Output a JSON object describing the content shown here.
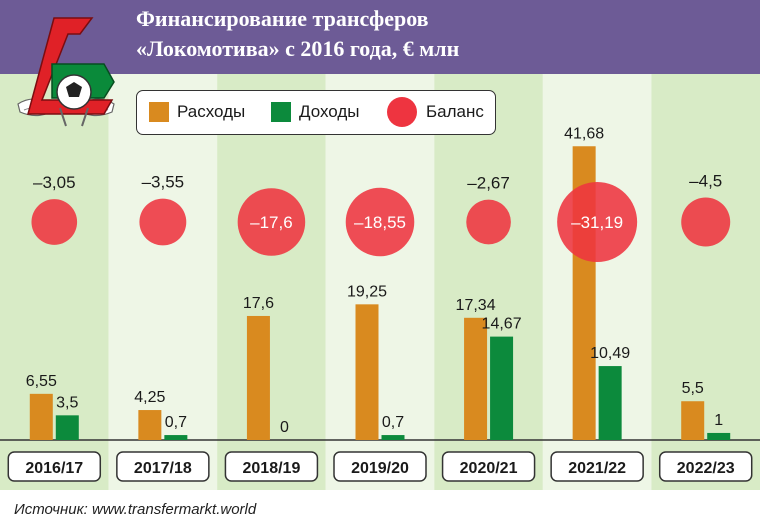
{
  "title_lines": [
    "Финансирование трансферов",
    "«Локомотива» с 2016 года, € млн"
  ],
  "source": "Источник: www.transfermarkt.world",
  "colors": {
    "expenses": "#d98a1f",
    "income": "#0c8a3c",
    "balance": "#ee3440",
    "header": "#6d5b96",
    "band_dark": "#d8ebc6",
    "band_light": "#eef6e6"
  },
  "legend": [
    {
      "key": "expenses",
      "label": "Расходы"
    },
    {
      "key": "income",
      "label": "Доходы"
    },
    {
      "key": "balance",
      "label": "Баланс"
    }
  ],
  "logo_icon": "lokomotiv-crest-icon",
  "chart_data": {
    "type": "bar",
    "categories": [
      "2016/17",
      "2017/18",
      "2018/19",
      "2019/20",
      "2020/21",
      "2021/22",
      "2022/23"
    ],
    "series": [
      {
        "name": "Расходы",
        "key": "expenses",
        "values": [
          6.55,
          4.25,
          17.6,
          19.25,
          17.34,
          41.68,
          5.5
        ],
        "labels": [
          "6,55",
          "4,25",
          "17,6",
          "19,25",
          "17,34",
          "41,68",
          "5,5"
        ]
      },
      {
        "name": "Доходы",
        "key": "income",
        "values": [
          3.5,
          0.7,
          0,
          0.7,
          14.67,
          10.49,
          1
        ],
        "labels": [
          "3,5",
          "0,7",
          "0",
          "0,7",
          "14,67",
          "10,49",
          "1"
        ]
      },
      {
        "name": "Баланс",
        "key": "balance",
        "values": [
          -3.05,
          -3.55,
          -17.6,
          -18.55,
          -2.67,
          -31.19,
          -4.5
        ],
        "labels": [
          "–3,05",
          "–3,55",
          "–17,6",
          "–18,55",
          "–2,67",
          "–31,19",
          "–4,5"
        ]
      }
    ],
    "ylim": [
      0,
      42
    ]
  }
}
